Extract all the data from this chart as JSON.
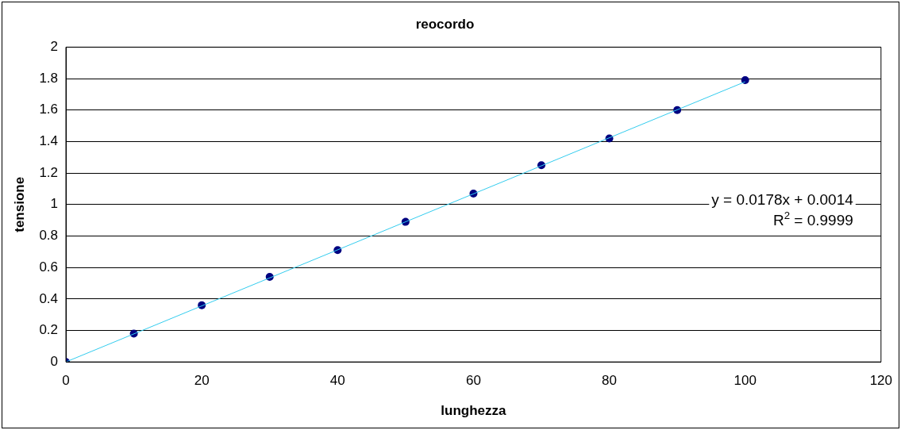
{
  "chart_data": {
    "type": "scatter",
    "title": "reocordo",
    "xlabel": "lunghezza",
    "ylabel": "tensione",
    "series": [
      {
        "color": "#000080",
        "marker": "circle",
        "x": [
          0,
          10,
          20,
          30,
          40,
          50,
          60,
          70,
          80,
          90,
          100
        ],
        "values": [
          0,
          0.18,
          0.36,
          0.54,
          0.71,
          0.89,
          1.07,
          1.25,
          1.42,
          1.6,
          1.79
        ]
      },
      {
        "type": "line",
        "color": "#33ccee",
        "x": [
          0,
          100
        ],
        "values": [
          0,
          1.78
        ]
      }
    ],
    "xlim": [
      0,
      120
    ],
    "xticks": [
      0,
      20,
      40,
      60,
      80,
      100,
      120
    ],
    "ylim": [
      0,
      2
    ],
    "yticks": [
      0,
      0.2,
      0.4,
      0.6,
      0.8,
      1,
      1.2,
      1.4,
      1.6,
      1.8,
      2
    ],
    "grid": "y",
    "legend": false,
    "annotations": [
      "y = 0.0178x + 0.0014",
      "R$^{2}$ = 0.9999"
    ]
  }
}
